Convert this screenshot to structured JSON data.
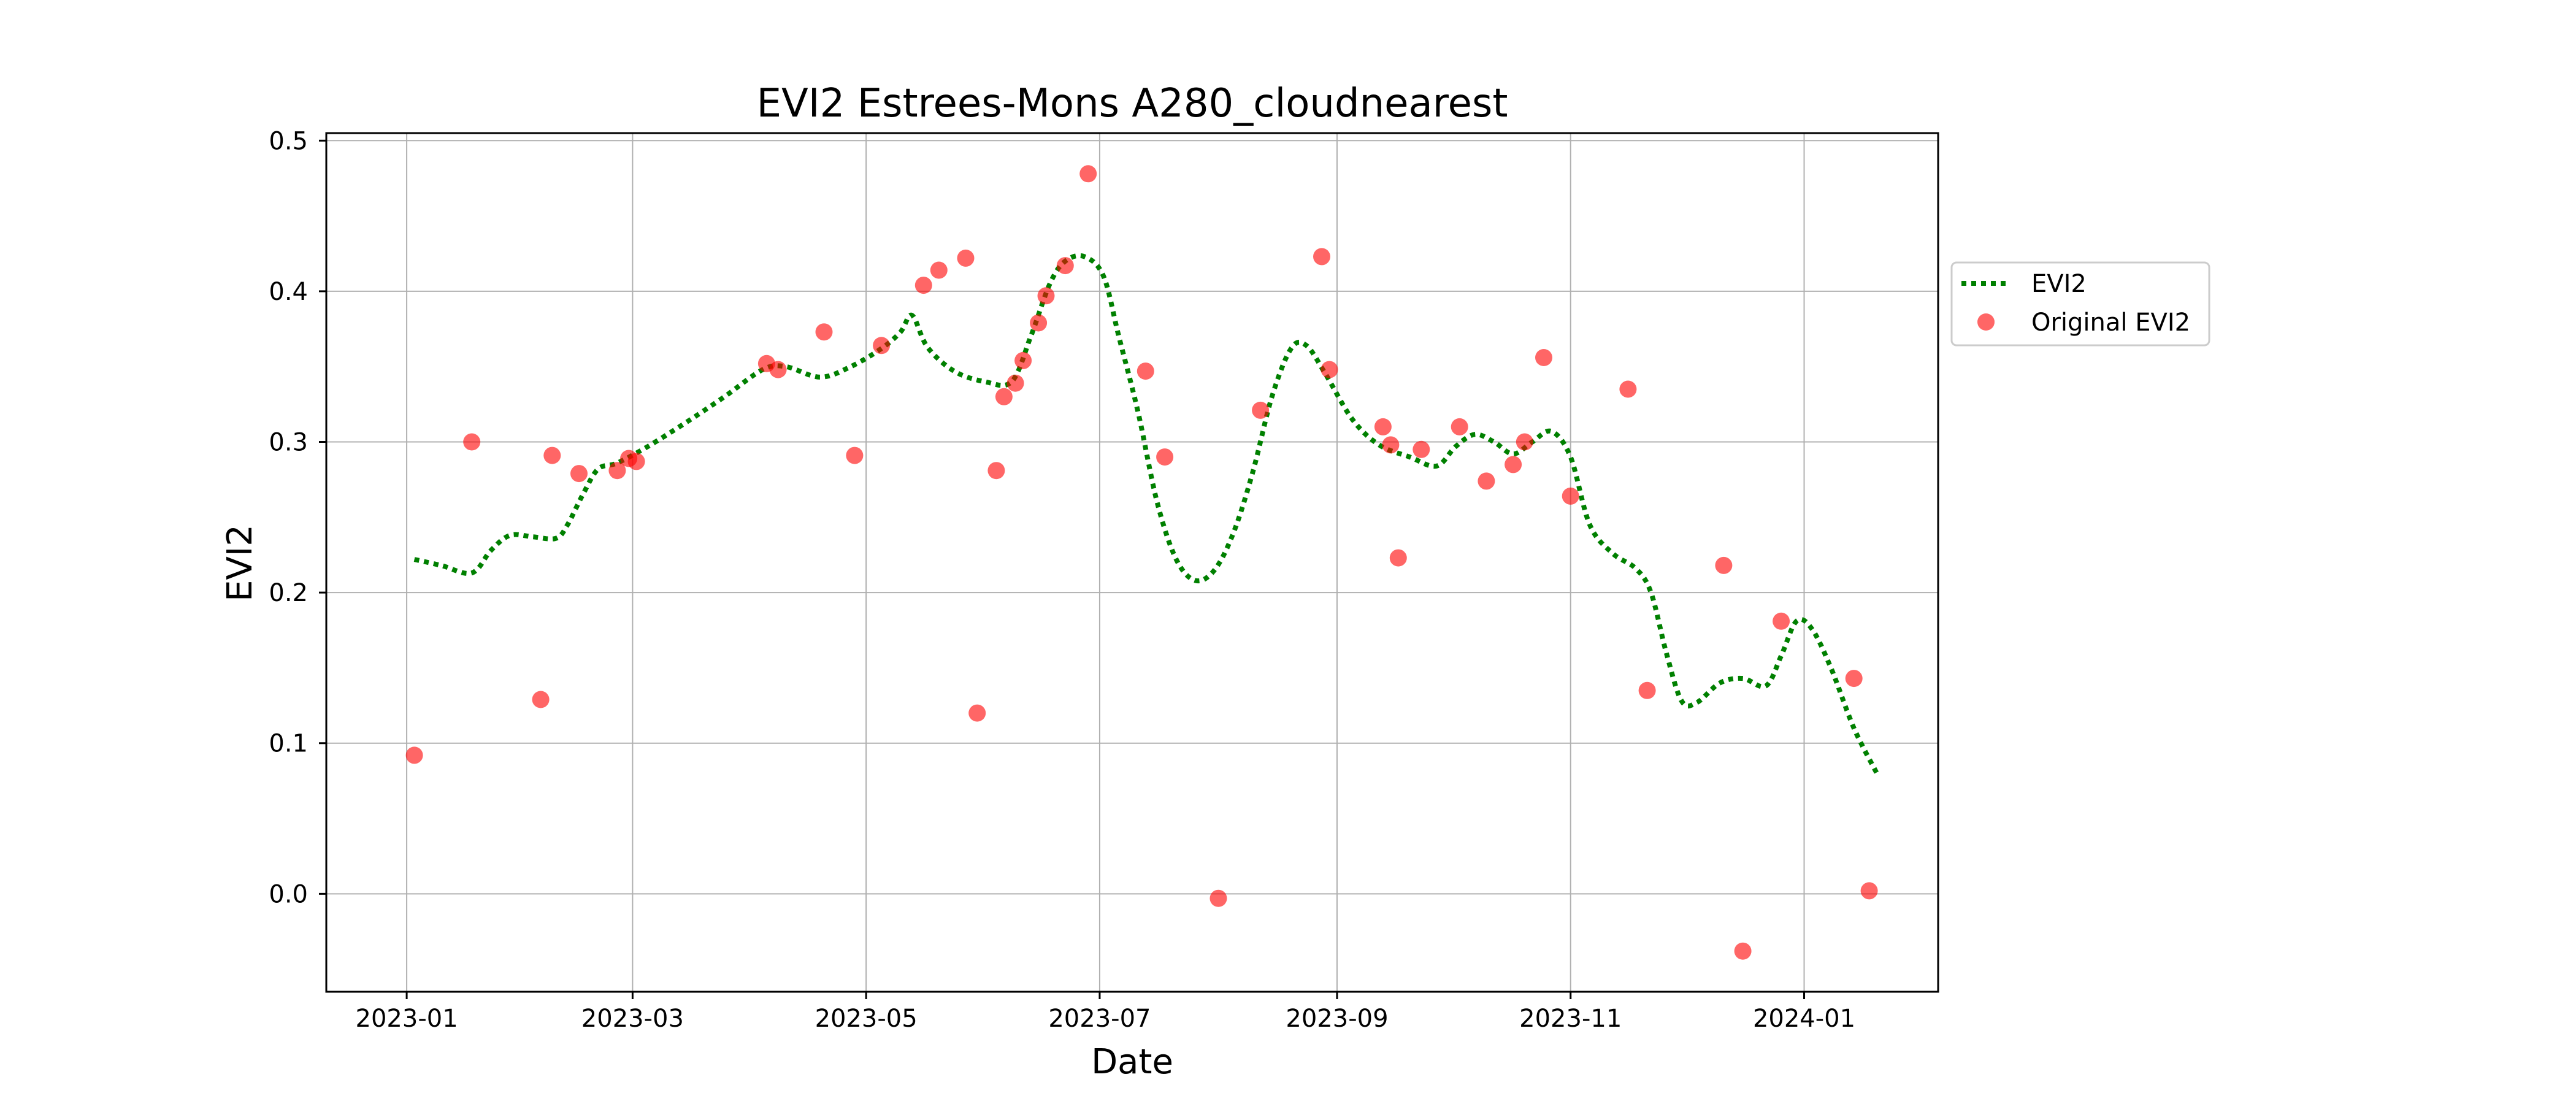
{
  "chart_data": {
    "type": "scatter",
    "title": "EVI2 Estrees-Mons A280_cloudnearest",
    "xlabel": "Date",
    "ylabel": "EVI2",
    "xlim": [
      "2022-12-11",
      "2024-02-05"
    ],
    "ylim": [
      -0.065,
      0.505
    ],
    "x_ticks": [
      "2023-01",
      "2023-03",
      "2023-05",
      "2023-07",
      "2023-09",
      "2023-11",
      "2024-01"
    ],
    "y_ticks": [
      "0.0",
      "0.1",
      "0.2",
      "0.3",
      "0.4",
      "0.5"
    ],
    "grid": true,
    "legend_position": "outside right",
    "series": [
      {
        "name": "EVI2",
        "style": "dotted line",
        "color": "#008000",
        "points": [
          [
            "2023-01-03",
            0.222
          ],
          [
            "2023-01-10",
            0.218
          ],
          [
            "2023-01-18",
            0.213
          ],
          [
            "2023-01-23",
            0.228
          ],
          [
            "2023-01-28",
            0.238
          ],
          [
            "2023-02-03",
            0.237
          ],
          [
            "2023-02-09",
            0.236
          ],
          [
            "2023-02-12",
            0.245
          ],
          [
            "2023-02-16",
            0.265
          ],
          [
            "2023-02-20",
            0.282
          ],
          [
            "2023-02-25",
            0.286
          ],
          [
            "2023-03-05",
            0.297
          ],
          [
            "2023-03-15",
            0.313
          ],
          [
            "2023-03-25",
            0.33
          ],
          [
            "2023-04-04",
            0.348
          ],
          [
            "2023-04-10",
            0.35
          ],
          [
            "2023-04-19",
            0.343
          ],
          [
            "2023-04-27",
            0.35
          ],
          [
            "2023-05-05",
            0.362
          ],
          [
            "2023-05-10",
            0.373
          ],
          [
            "2023-05-13",
            0.384
          ],
          [
            "2023-05-17",
            0.363
          ],
          [
            "2023-05-24",
            0.347
          ],
          [
            "2023-06-01",
            0.34
          ],
          [
            "2023-06-08",
            0.34
          ],
          [
            "2023-06-13",
            0.37
          ],
          [
            "2023-06-18",
            0.405
          ],
          [
            "2023-06-22",
            0.42
          ],
          [
            "2023-06-27",
            0.423
          ],
          [
            "2023-07-02",
            0.41
          ],
          [
            "2023-07-06",
            0.37
          ],
          [
            "2023-07-11",
            0.32
          ],
          [
            "2023-07-16",
            0.26
          ],
          [
            "2023-07-21",
            0.222
          ],
          [
            "2023-07-26",
            0.208
          ],
          [
            "2023-07-31",
            0.215
          ],
          [
            "2023-08-05",
            0.24
          ],
          [
            "2023-08-10",
            0.28
          ],
          [
            "2023-08-15",
            0.33
          ],
          [
            "2023-08-20",
            0.362
          ],
          [
            "2023-08-24",
            0.364
          ],
          [
            "2023-08-29",
            0.345
          ],
          [
            "2023-09-05",
            0.315
          ],
          [
            "2023-09-12",
            0.298
          ],
          [
            "2023-09-20",
            0.29
          ],
          [
            "2023-09-27",
            0.284
          ],
          [
            "2023-10-02",
            0.297
          ],
          [
            "2023-10-07",
            0.305
          ],
          [
            "2023-10-12",
            0.3
          ],
          [
            "2023-10-17",
            0.292
          ],
          [
            "2023-10-22",
            0.3
          ],
          [
            "2023-10-27",
            0.307
          ],
          [
            "2023-11-01",
            0.29
          ],
          [
            "2023-11-06",
            0.245
          ],
          [
            "2023-11-12",
            0.226
          ],
          [
            "2023-11-18",
            0.216
          ],
          [
            "2023-11-22",
            0.2
          ],
          [
            "2023-11-26",
            0.16
          ],
          [
            "2023-11-30",
            0.128
          ],
          [
            "2023-12-04",
            0.127
          ],
          [
            "2023-12-10",
            0.14
          ],
          [
            "2023-12-16",
            0.143
          ],
          [
            "2023-12-22",
            0.138
          ],
          [
            "2023-12-26",
            0.158
          ],
          [
            "2023-12-30",
            0.181
          ],
          [
            "2024-01-03",
            0.176
          ],
          [
            "2024-01-08",
            0.15
          ],
          [
            "2024-01-14",
            0.11
          ],
          [
            "2024-01-20",
            0.08
          ]
        ]
      },
      {
        "name": "Original EVI2",
        "style": "markers",
        "color": "#ff0000",
        "points": [
          [
            "2023-01-03",
            0.092
          ],
          [
            "2023-01-18",
            0.3
          ],
          [
            "2023-02-05",
            0.129
          ],
          [
            "2023-02-08",
            0.291
          ],
          [
            "2023-02-15",
            0.279
          ],
          [
            "2023-02-25",
            0.281
          ],
          [
            "2023-02-28",
            0.289
          ],
          [
            "2023-03-02",
            0.287
          ],
          [
            "2023-04-05",
            0.352
          ],
          [
            "2023-04-08",
            0.348
          ],
          [
            "2023-04-20",
            0.373
          ],
          [
            "2023-04-28",
            0.291
          ],
          [
            "2023-05-05",
            0.364
          ],
          [
            "2023-05-16",
            0.404
          ],
          [
            "2023-05-20",
            0.414
          ],
          [
            "2023-05-27",
            0.422
          ],
          [
            "2023-05-30",
            0.12
          ],
          [
            "2023-06-04",
            0.281
          ],
          [
            "2023-06-06",
            0.33
          ],
          [
            "2023-06-09",
            0.339
          ],
          [
            "2023-06-11",
            0.354
          ],
          [
            "2023-06-15",
            0.379
          ],
          [
            "2023-06-17",
            0.397
          ],
          [
            "2023-06-22",
            0.417
          ],
          [
            "2023-06-28",
            0.478
          ],
          [
            "2023-07-13",
            0.347
          ],
          [
            "2023-07-18",
            0.29
          ],
          [
            "2023-08-01",
            -0.003
          ],
          [
            "2023-08-12",
            0.321
          ],
          [
            "2023-08-28",
            0.423
          ],
          [
            "2023-08-30",
            0.348
          ],
          [
            "2023-09-13",
            0.31
          ],
          [
            "2023-09-15",
            0.298
          ],
          [
            "2023-09-17",
            0.223
          ],
          [
            "2023-09-23",
            0.295
          ],
          [
            "2023-10-03",
            0.31
          ],
          [
            "2023-10-10",
            0.274
          ],
          [
            "2023-10-17",
            0.285
          ],
          [
            "2023-10-20",
            0.3
          ],
          [
            "2023-10-25",
            0.356
          ],
          [
            "2023-11-01",
            0.264
          ],
          [
            "2023-11-16",
            0.335
          ],
          [
            "2023-11-21",
            0.135
          ],
          [
            "2023-12-11",
            0.218
          ],
          [
            "2023-12-16",
            -0.038
          ],
          [
            "2023-12-26",
            0.181
          ],
          [
            "2024-01-14",
            0.143
          ],
          [
            "2024-01-18",
            0.002
          ]
        ]
      }
    ]
  }
}
